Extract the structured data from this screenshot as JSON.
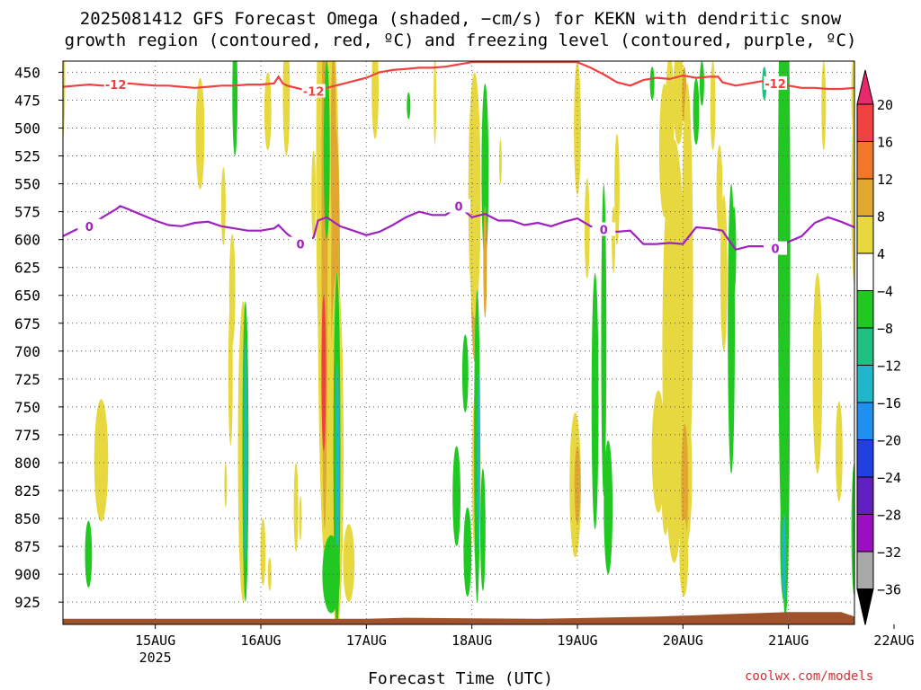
{
  "title_line1": "2025081412 GFS Forecast Omega (shaded, −cm/s) for KEKN with dendritic snow",
  "title_line2": "growth region (contoured, red, ºC) and freezing level (contoured, purple, ºC)",
  "credit": "coolwx.com/models",
  "chart_data": {
    "type": "heatmap",
    "xlabel": "Forecast Time (UTC)",
    "ylabel": "",
    "xlim_hours": [
      -9,
      171
    ],
    "ylim_hpa": [
      440,
      945
    ],
    "x_ticks": [
      {
        "label": "15AUG",
        "sub": "2025",
        "hour": 12
      },
      {
        "label": "16AUG",
        "sub": "",
        "hour": 36
      },
      {
        "label": "17AUG",
        "sub": "",
        "hour": 60
      },
      {
        "label": "18AUG",
        "sub": "",
        "hour": 84
      },
      {
        "label": "19AUG",
        "sub": "",
        "hour": 108
      },
      {
        "label": "20AUG",
        "sub": "",
        "hour": 132
      },
      {
        "label": "21AUG",
        "sub": "",
        "hour": 156
      },
      {
        "label": "22AUG",
        "sub": "",
        "hour": 180
      }
    ],
    "y_ticks": [
      450,
      475,
      500,
      525,
      550,
      575,
      600,
      625,
      650,
      675,
      700,
      725,
      750,
      775,
      800,
      825,
      850,
      875,
      900,
      925
    ],
    "grid": true,
    "colorbar": {
      "labels": [
        "20",
        "16",
        "12",
        "8",
        "4",
        "−4",
        "−8",
        "−12",
        "−16",
        "−20",
        "−24",
        "−28",
        "−32",
        "−36"
      ],
      "colors": [
        "#e8296c",
        "#f04040",
        "#f07828",
        "#e0a830",
        "#e8d840",
        "#ffffff",
        "#22c822",
        "#20c080",
        "#20b8c8",
        "#2090f0",
        "#2040e0",
        "#6020c0",
        "#9a10c0",
        "#a8a8a8",
        "#000000"
      ]
    },
    "contours": [
      {
        "value": "-12",
        "color": "#f04040",
        "points": [
          [
            -9,
            463
          ],
          [
            -6,
            462
          ],
          [
            -3,
            461
          ],
          [
            0,
            462
          ],
          [
            3,
            461
          ],
          [
            6,
            460
          ],
          [
            9,
            461
          ],
          [
            12,
            462
          ],
          [
            15,
            462
          ],
          [
            18,
            463
          ],
          [
            21,
            464
          ],
          [
            24,
            463
          ],
          [
            27,
            462
          ],
          [
            30,
            462
          ],
          [
            33,
            461
          ],
          [
            36,
            461
          ],
          [
            39,
            460
          ],
          [
            40,
            454
          ],
          [
            41,
            460
          ],
          [
            42,
            462
          ],
          [
            45,
            465
          ],
          [
            48,
            467
          ],
          [
            51,
            464
          ],
          [
            54,
            461
          ],
          [
            57,
            458
          ],
          [
            60,
            455
          ],
          [
            63,
            450
          ],
          [
            66,
            448
          ],
          [
            69,
            447
          ],
          [
            72,
            446
          ],
          [
            75,
            446
          ],
          [
            78,
            445
          ],
          [
            81,
            443
          ],
          [
            84,
            441
          ],
          [
            87,
            441
          ],
          [
            90,
            441
          ],
          [
            93,
            441
          ],
          [
            96,
            441
          ],
          [
            99,
            441
          ],
          [
            102,
            441
          ],
          [
            105,
            441
          ],
          [
            108,
            441
          ],
          [
            111,
            446
          ],
          [
            114,
            452
          ],
          [
            117,
            459
          ],
          [
            120,
            462
          ],
          [
            123,
            457
          ],
          [
            126,
            455
          ],
          [
            129,
            456
          ],
          [
            132,
            453
          ],
          [
            135,
            455
          ],
          [
            138,
            454
          ],
          [
            140,
            454
          ],
          [
            141,
            459
          ],
          [
            144,
            462
          ],
          [
            147,
            460
          ],
          [
            150,
            458
          ],
          [
            153,
            460
          ],
          [
            156,
            462
          ],
          [
            159,
            464
          ],
          [
            162,
            464
          ],
          [
            165,
            465
          ],
          [
            168,
            465
          ],
          [
            171,
            464
          ]
        ]
      },
      {
        "value": "0",
        "color": "#a020c0",
        "points": [
          [
            -9,
            597
          ],
          [
            -6,
            591
          ],
          [
            -3,
            588
          ],
          [
            0,
            580
          ],
          [
            3,
            573
          ],
          [
            4,
            570
          ],
          [
            6,
            573
          ],
          [
            9,
            578
          ],
          [
            12,
            583
          ],
          [
            15,
            587
          ],
          [
            18,
            588
          ],
          [
            21,
            585
          ],
          [
            24,
            584
          ],
          [
            27,
            588
          ],
          [
            30,
            590
          ],
          [
            33,
            592
          ],
          [
            36,
            592
          ],
          [
            39,
            590
          ],
          [
            40,
            587
          ],
          [
            41,
            591
          ],
          [
            42,
            595
          ],
          [
            45,
            604
          ],
          [
            48,
            598
          ],
          [
            49,
            583
          ],
          [
            51,
            580
          ],
          [
            54,
            588
          ],
          [
            57,
            592
          ],
          [
            60,
            596
          ],
          [
            63,
            593
          ],
          [
            66,
            587
          ],
          [
            69,
            580
          ],
          [
            72,
            575
          ],
          [
            75,
            578
          ],
          [
            78,
            578
          ],
          [
            81,
            570
          ],
          [
            84,
            580
          ],
          [
            87,
            577
          ],
          [
            90,
            583
          ],
          [
            93,
            583
          ],
          [
            96,
            587
          ],
          [
            99,
            585
          ],
          [
            102,
            588
          ],
          [
            105,
            584
          ],
          [
            108,
            581
          ],
          [
            111,
            588
          ],
          [
            114,
            591
          ],
          [
            117,
            593
          ],
          [
            120,
            592
          ],
          [
            123,
            604
          ],
          [
            126,
            604
          ],
          [
            129,
            603
          ],
          [
            132,
            604
          ],
          [
            135,
            589
          ],
          [
            138,
            590
          ],
          [
            141,
            592
          ],
          [
            142,
            598
          ],
          [
            144,
            609
          ],
          [
            147,
            606
          ],
          [
            150,
            606
          ],
          [
            153,
            608
          ],
          [
            156,
            602
          ],
          [
            159,
            597
          ],
          [
            162,
            585
          ],
          [
            165,
            580
          ],
          [
            168,
            584
          ],
          [
            171,
            589
          ]
        ]
      }
    ]
  }
}
